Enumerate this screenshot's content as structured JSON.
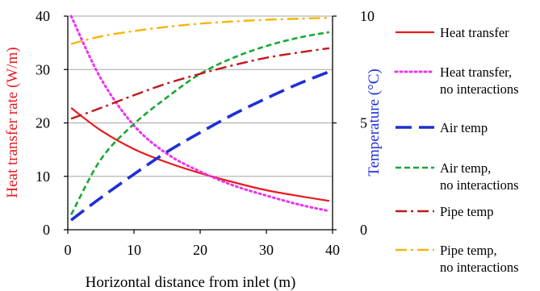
{
  "chart_data": {
    "type": "line",
    "xlabel": "Horizontal distance from inlet (m)",
    "ylabel_left": "Heat transfer rate (W/m)",
    "ylabel_right": "Temperature (°C)",
    "xlim": [
      0,
      40
    ],
    "ylim_left": [
      0,
      40
    ],
    "ylim_right": [
      0,
      10
    ],
    "x_ticks": [
      "0",
      "10",
      "20",
      "30",
      "40"
    ],
    "y_left_ticks": [
      "0",
      "10",
      "20",
      "30",
      "40"
    ],
    "y_right_ticks": [
      "0",
      "5",
      "10"
    ],
    "grid": "horizontal",
    "legend_position": "right",
    "colors": {
      "left_axis": "#e8191f",
      "right_axis": "#1f2fd6",
      "grid": "#a6a6a6"
    },
    "series": [
      {
        "name": "Heat transfer",
        "legend_lines": [
          "Heat transfer"
        ],
        "axis": "left",
        "color": "#e8191f",
        "style": "solid",
        "x": [
          0.5,
          5,
          10,
          15,
          20,
          25,
          30,
          35,
          39.5
        ],
        "y": [
          22.8,
          18.6,
          15.1,
          12.6,
          10.6,
          8.9,
          7.4,
          6.3,
          5.4
        ]
      },
      {
        "name": "Heat transfer, no interactions",
        "legend_lines": [
          "Heat transfer,",
          "no interactions"
        ],
        "axis": "left",
        "color": "#ee33ee",
        "style": "dotted",
        "x": [
          0.5,
          5,
          10,
          15,
          20,
          25,
          30,
          35,
          39.5
        ],
        "y": [
          40.0,
          28.3,
          19.5,
          14.2,
          10.9,
          8.3,
          6.4,
          4.7,
          3.5
        ]
      },
      {
        "name": "Air temp",
        "legend_lines": [
          "Air temp"
        ],
        "axis": "right",
        "color": "#1f2fd6",
        "style": "longdash",
        "x": [
          0.5,
          5,
          10,
          15,
          20,
          25,
          30,
          35,
          39.5
        ],
        "y": [
          0.45,
          1.5,
          2.6,
          3.65,
          4.55,
          5.4,
          6.15,
          6.85,
          7.4
        ]
      },
      {
        "name": "Air temp, no interactions",
        "legend_lines": [
          "Air temp,",
          "no interactions"
        ],
        "axis": "right",
        "color": "#19a832",
        "style": "dashed",
        "x": [
          0.5,
          5,
          10,
          15,
          20,
          25,
          30,
          35,
          39.5
        ],
        "y": [
          0.7,
          3.3,
          4.95,
          6.2,
          7.3,
          8.05,
          8.6,
          9.0,
          9.25
        ]
      },
      {
        "name": "Pipe temp",
        "legend_lines": [
          "Pipe temp"
        ],
        "axis": "right",
        "color": "#c0191c",
        "style": "dashdot",
        "x": [
          0.5,
          5,
          10,
          15,
          20,
          25,
          30,
          35,
          39.5
        ],
        "y": [
          5.2,
          5.7,
          6.3,
          6.85,
          7.3,
          7.7,
          8.05,
          8.3,
          8.5
        ]
      },
      {
        "name": "Pipe temp, no interactions",
        "legend_lines": [
          "Pipe temp,",
          "no interactions"
        ],
        "axis": "right",
        "color": "#f5b50a",
        "style": "dashdot",
        "x": [
          0.5,
          5,
          10,
          15,
          20,
          25,
          30,
          35,
          39.5
        ],
        "y": [
          8.7,
          9.05,
          9.3,
          9.5,
          9.65,
          9.75,
          9.83,
          9.88,
          9.92
        ]
      }
    ]
  }
}
